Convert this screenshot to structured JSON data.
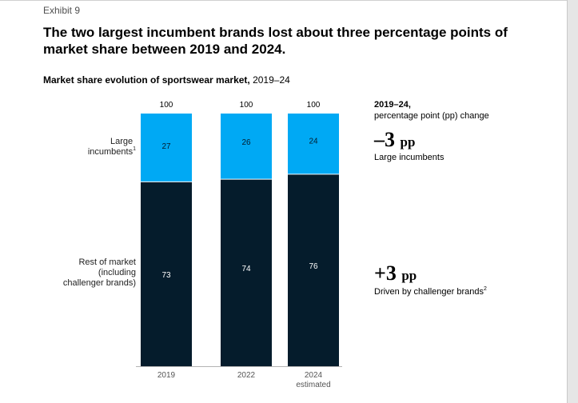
{
  "exhibit_label": "Exhibit 9",
  "title": "The two largest incumbent brands lost about three percentage points of market share between 2019 and 2024.",
  "subtitle_bold": "Market share evolution of sportswear market,",
  "subtitle_rest": " 2019–24",
  "row_labels": {
    "large_incumbents": "Large incumbents",
    "large_incumbents_note": "1",
    "rest_of_market_line1": "Rest of market",
    "rest_of_market_line2": "(including",
    "rest_of_market_line3": "challenger brands)"
  },
  "change_panel": {
    "header_bold": "2019–24,",
    "header_rest": "percentage point (pp) change",
    "incumbents_value": "–3",
    "incumbents_unit": "pp",
    "incumbents_label": "Large incumbents",
    "challengers_value": "+3",
    "challengers_unit": "pp",
    "challengers_label": "Driven by challenger brands",
    "challengers_note": "2"
  },
  "colors": {
    "incumbents": "#00a9f4",
    "rest": "#051c2c",
    "axis": "#b3b3b3"
  },
  "chart_data": {
    "type": "bar",
    "stacked": true,
    "categories": [
      "2019",
      "2022",
      "2024 estimated"
    ],
    "category_labels": [
      [
        "2019"
      ],
      [
        "2022"
      ],
      [
        "2024",
        "estimated"
      ]
    ],
    "totals": [
      100,
      100,
      100
    ],
    "series": [
      {
        "name": "Rest of market (including challenger brands)",
        "values": [
          73,
          74,
          76
        ]
      },
      {
        "name": "Large incumbents",
        "values": [
          27,
          26,
          24
        ]
      }
    ],
    "ylim": [
      0,
      100
    ],
    "grid": false,
    "title": "Market share evolution of sportswear market, 2019–24",
    "xlabel": "",
    "ylabel": ""
  }
}
